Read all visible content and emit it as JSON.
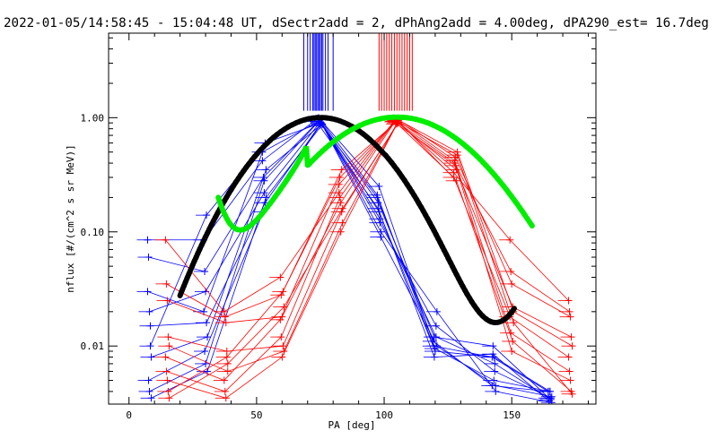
{
  "chart_data": {
    "type": "line",
    "title": "2022-01-05/14:58:45 - 15:04:48 UT, dSectr2add = 2, dPhAng2add = 4.00deg, dPA290_est=  16.7deg",
    "xlabel": "PA [deg]",
    "ylabel": "nflux [#/(cm^2 s sr MeV)]",
    "xlim": [
      -8,
      183
    ],
    "ylim": [
      0.0031,
      5.5
    ],
    "yscale": "log",
    "xticks": [
      0,
      50,
      100,
      150
    ],
    "yticks": [
      0.01,
      0.1,
      1.0
    ],
    "xtick_labels": [
      "0",
      "50",
      "100",
      "150"
    ],
    "ytick_labels": [
      "0.01",
      "0.10",
      "1.00"
    ],
    "grid": false,
    "legend": "none",
    "colors": {
      "blue_series": "#0000ff",
      "red_series": "#ff0000",
      "black_fit": "#000000",
      "green_fit": "#00ee00"
    },
    "series": [
      {
        "color": "#0000ff",
        "marker": "+",
        "x": [
          8,
          30,
          53,
          75,
          98,
          120,
          143,
          165
        ],
        "profiles": [
          [
            0.085,
            0.085,
            0.42,
            1.0,
            0.21,
            0.01,
            0.008,
            0.004
          ],
          [
            0.06,
            0.045,
            0.3,
            0.95,
            0.18,
            0.012,
            0.01,
            0.0035
          ],
          [
            0.02,
            0.03,
            0.22,
            0.92,
            0.15,
            0.009,
            0.008,
            0.004
          ],
          [
            0.015,
            0.016,
            0.18,
            0.9,
            0.12,
            0.015,
            0.006,
            0.0035
          ],
          [
            0.008,
            0.012,
            0.35,
            0.88,
            0.1,
            0.02,
            0.004,
            0.0032
          ],
          [
            0.03,
            0.02,
            0.5,
            0.93,
            0.2,
            0.011,
            0.0045,
            0.004
          ],
          [
            0.005,
            0.009,
            0.15,
            0.85,
            0.16,
            0.008,
            0.0085,
            0.0033
          ],
          [
            0.004,
            0.007,
            0.28,
            0.96,
            0.25,
            0.0095,
            0.005,
            0.004
          ],
          [
            0.01,
            0.14,
            0.6,
            0.9,
            0.13,
            0.012,
            0.007,
            0.0034
          ],
          [
            0.0035,
            0.006,
            0.2,
            0.87,
            0.09,
            0.01,
            0.0045,
            0.0036
          ]
        ]
      },
      {
        "color": "#ff0000",
        "marker": "+",
        "x": [
          15,
          38,
          60,
          83,
          105,
          128,
          150,
          173
        ],
        "profiles": [
          [
            0.085,
            0.02,
            0.04,
            0.22,
            0.96,
            0.33,
            0.085,
            0.025
          ],
          [
            0.035,
            0.018,
            0.028,
            0.3,
            0.93,
            0.4,
            0.045,
            0.02
          ],
          [
            0.025,
            0.016,
            0.018,
            0.18,
            0.98,
            0.45,
            0.035,
            0.018
          ],
          [
            0.012,
            0.009,
            0.01,
            0.15,
            0.9,
            0.35,
            0.022,
            0.012
          ],
          [
            0.01,
            0.006,
            0.009,
            0.12,
            0.95,
            0.5,
            0.02,
            0.01
          ],
          [
            0.008,
            0.005,
            0.017,
            0.26,
            0.92,
            0.3,
            0.018,
            0.008
          ],
          [
            0.006,
            0.004,
            0.012,
            0.2,
            0.97,
            0.42,
            0.013,
            0.006
          ],
          [
            0.005,
            0.0035,
            0.008,
            0.1,
            0.88,
            0.38,
            0.009,
            0.005
          ],
          [
            0.004,
            0.008,
            0.03,
            0.35,
            0.94,
            0.28,
            0.011,
            0.004
          ],
          [
            0.0035,
            0.007,
            0.022,
            0.16,
            0.91,
            0.47,
            0.016,
            0.0038
          ]
        ]
      },
      {
        "color": "#000000",
        "style": "thick-dashed-fit",
        "peak_x": 75,
        "peak_y": 1.0,
        "x_range": [
          20,
          151
        ]
      },
      {
        "color": "#00ee00",
        "style": "thick-dashed-fit",
        "peak_x": 105,
        "peak_y": 1.0,
        "x_range": [
          35,
          158
        ]
      }
    ],
    "markers": {
      "blue_vertical_lines_x": [
        68.5,
        70,
        71,
        72,
        72.5,
        73,
        73.5,
        74,
        74.5,
        75,
        75.5,
        76,
        77,
        78,
        80
      ],
      "red_vertical_lines_x": [
        98,
        99,
        100,
        101,
        102,
        103,
        104,
        105,
        106,
        107,
        108,
        109,
        110,
        111
      ]
    }
  }
}
